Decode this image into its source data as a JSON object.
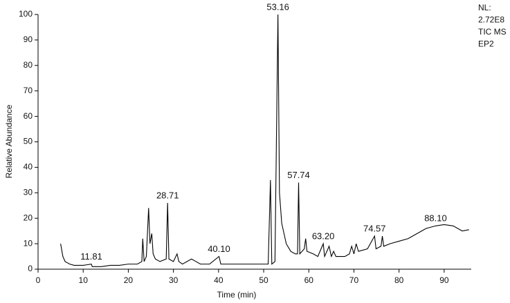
{
  "chart_data": {
    "type": "line",
    "info_lines": [
      "NL:",
      "2.72E8",
      "TIC MS",
      "EP2"
    ],
    "xlabel": "Time (min)",
    "ylabel": "Relative Abundance",
    "xlim": [
      0,
      96
    ],
    "ylim": [
      0,
      100
    ],
    "xticks": [
      0,
      10,
      20,
      30,
      40,
      50,
      60,
      70,
      80,
      90
    ],
    "yticks": [
      0,
      10,
      20,
      30,
      40,
      50,
      60,
      70,
      80,
      90,
      100
    ],
    "color": "#000000",
    "series": [
      {
        "name": "TIC",
        "x": [
          5,
          5.5,
          6,
          7,
          8,
          10,
          11.81,
          12,
          14,
          16,
          18,
          20,
          22,
          23,
          23.2,
          23.5,
          24,
          24.5,
          24.8,
          25.2,
          25.5,
          26,
          27,
          28.4,
          28.71,
          29,
          30,
          30.8,
          31.2,
          32,
          34,
          35,
          36,
          38,
          40.1,
          40.5,
          42,
          45,
          48,
          50,
          51,
          51.5,
          51.8,
          52.5,
          53.16,
          53.5,
          54,
          55,
          56,
          57,
          57.5,
          57.74,
          58,
          59,
          59.3,
          59.6,
          61,
          62,
          63.2,
          63.5,
          64.5,
          65,
          65.5,
          66,
          68,
          69,
          69.5,
          70,
          70.5,
          71,
          73,
          74.57,
          74.9,
          76,
          76.3,
          76.6,
          78,
          80,
          82,
          84,
          86,
          88.1,
          90,
          92,
          94,
          95.5
        ],
        "values": [
          10,
          5,
          3,
          2,
          1.5,
          1.5,
          2,
          1,
          1,
          1.5,
          1.5,
          2,
          2,
          3,
          12,
          3,
          5,
          24,
          10,
          14,
          6,
          4,
          3,
          4,
          26,
          4,
          3,
          6,
          3,
          2,
          4,
          3,
          2,
          2,
          5,
          2,
          2,
          2,
          2,
          2,
          2,
          35,
          2,
          3,
          100,
          30,
          18,
          10,
          7,
          6,
          6,
          34,
          6,
          8,
          12,
          7,
          6,
          5,
          10,
          5,
          9,
          5,
          7,
          5,
          5,
          6,
          9,
          6,
          10,
          7,
          8,
          13,
          8,
          9,
          13,
          9,
          10,
          11,
          12,
          14,
          16,
          17,
          17.5,
          17,
          15,
          15.5
        ]
      }
    ],
    "annotations": [
      {
        "text": "11.81",
        "x": 11.81,
        "y": 2
      },
      {
        "text": "28.71",
        "x": 28.71,
        "y": 26
      },
      {
        "text": "40.10",
        "x": 40.1,
        "y": 5
      },
      {
        "text": "53.16",
        "x": 53.16,
        "y": 100
      },
      {
        "text": "57.74",
        "x": 57.74,
        "y": 34
      },
      {
        "text": "63.20",
        "x": 63.2,
        "y": 10
      },
      {
        "text": "74.57",
        "x": 74.57,
        "y": 13
      },
      {
        "text": "88.10",
        "x": 88.1,
        "y": 17
      }
    ]
  }
}
